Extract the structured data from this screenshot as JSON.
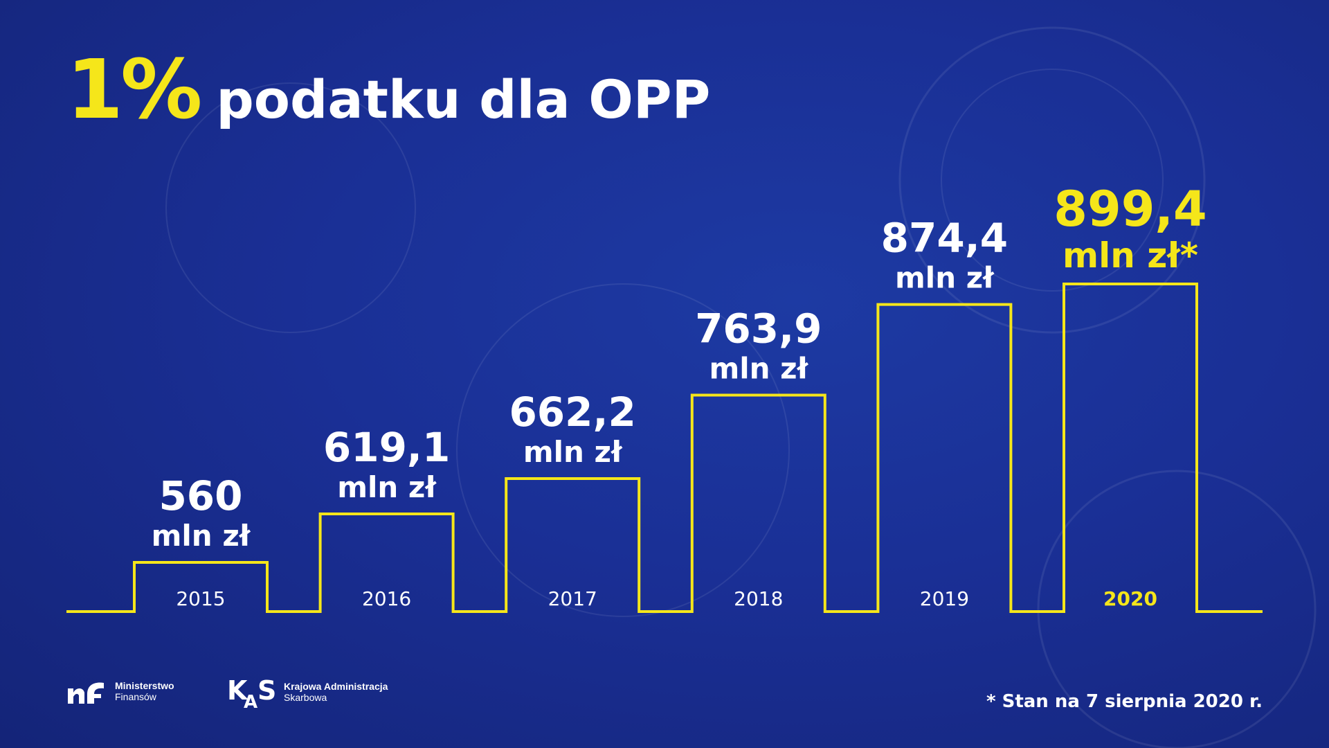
{
  "title": {
    "highlight": "1%",
    "rest": "podatku dla OPP"
  },
  "chart_data": {
    "type": "bar",
    "categories": [
      "2015",
      "2016",
      "2017",
      "2018",
      "2019",
      "2020"
    ],
    "values": [
      560,
      619.1,
      662.2,
      763.9,
      874.4,
      899.4
    ],
    "value_labels": [
      "560",
      "619,1",
      "662,2",
      "763,9",
      "874,4",
      "899,4"
    ],
    "unit_labels": [
      "mln zł",
      "mln zł",
      "mln zł",
      "mln zł",
      "mln zł",
      "mln zł*"
    ],
    "highlight_index": 5,
    "colors": {
      "outline": "#f5e61a",
      "highlight": "#f5e61a",
      "text": "#ffffff",
      "year_text": "#ffffff"
    }
  },
  "logos": {
    "mf": {
      "name_line1": "Ministerstwo",
      "name_line2": "Finansów"
    },
    "kas": {
      "name_line1": "Krajowa Administracja",
      "name_line2": "Skarbowa"
    }
  },
  "footnote": "* Stan na 7 sierpnia 2020 r."
}
